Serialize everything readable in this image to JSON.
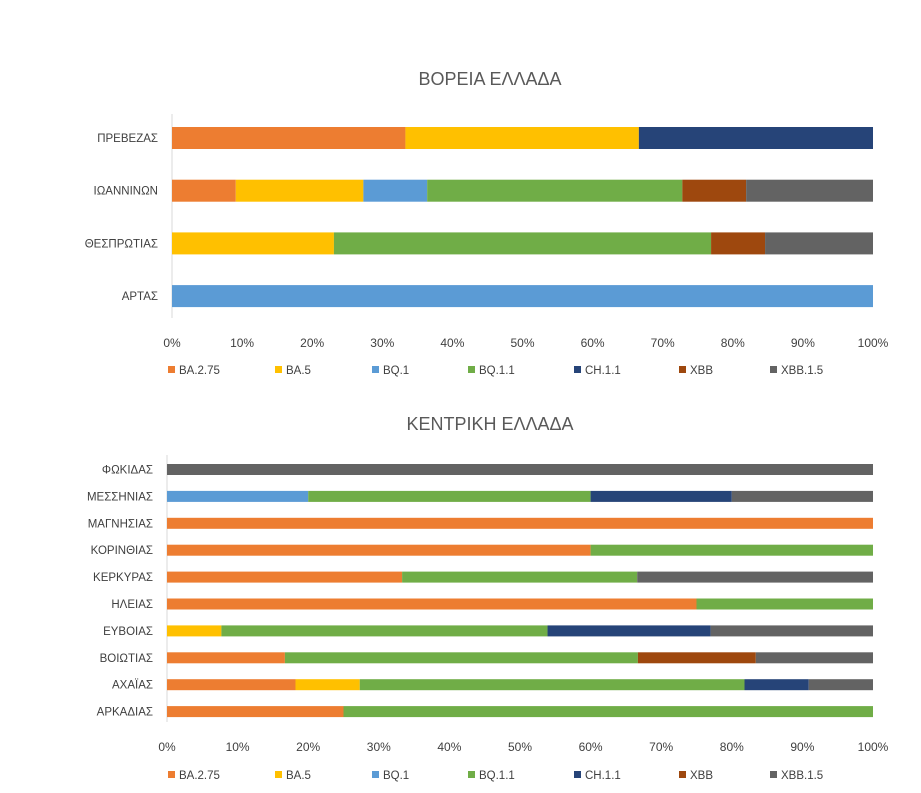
{
  "series_names": [
    "BA.2.75",
    "BA.5",
    "BQ.1",
    "BQ.1.1",
    "CH.1.1",
    "XBB",
    "XBB.1.5"
  ],
  "colors": {
    "BA.2.75": "#ed7d31",
    "BA.5": "#ffc000",
    "BQ.1": "#5b9bd5",
    "BQ.1.1": "#70ad47",
    "CH.1.1": "#264478",
    "XBB": "#9e480e",
    "XBB.1.5": "#636363"
  },
  "chart_data": [
    {
      "type": "bar",
      "orientation": "horizontal",
      "stacked": "percent",
      "title": "ΒΟΡΕΙΑ ΕΛΛΑΔΑ",
      "categories": [
        "ΠΡΕΒΕΖΑΣ",
        "ΙΩΑΝΝΙΝΩΝ",
        "ΘΕΣΠΡΩΤΙΑΣ",
        "ΑΡΤΑΣ"
      ],
      "x_ticks": [
        "0%",
        "10%",
        "20%",
        "30%",
        "40%",
        "50%",
        "60%",
        "70%",
        "80%",
        "90%",
        "100%"
      ],
      "xlim": [
        0,
        100
      ],
      "legend_position": "bottom",
      "series": [
        {
          "name": "BA.2.75",
          "values": [
            33.3,
            9.1,
            0,
            0
          ]
        },
        {
          "name": "BA.5",
          "values": [
            33.3,
            18.2,
            23.1,
            0
          ]
        },
        {
          "name": "BQ.1",
          "values": [
            0,
            9.1,
            0,
            100
          ]
        },
        {
          "name": "BQ.1.1",
          "values": [
            0,
            36.4,
            53.8,
            0
          ]
        },
        {
          "name": "CH.1.1",
          "values": [
            33.4,
            0,
            0,
            0
          ]
        },
        {
          "name": "XBB",
          "values": [
            0,
            9.1,
            7.7,
            0
          ]
        },
        {
          "name": "XBB.1.5",
          "values": [
            0,
            18.1,
            15.4,
            0
          ]
        }
      ]
    },
    {
      "type": "bar",
      "orientation": "horizontal",
      "stacked": "percent",
      "title": "ΚΕΝΤΡΙΚΗ ΕΛΛΑΔΑ",
      "categories": [
        "ΦΩΚΙΔΑΣ",
        "ΜΕΣΣΗΝΙΑΣ",
        "ΜΑΓΝΗΣΙΑΣ",
        "ΚΟΡΙΝΘΙΑΣ",
        "ΚΕΡΚΥΡΑΣ",
        "ΗΛΕΙΑΣ",
        "ΕΥΒΟΙΑΣ",
        "ΒΟΙΩΤΙΑΣ",
        "ΑΧΑΪΑΣ",
        "ΑΡΚΑΔΙΑΣ"
      ],
      "x_ticks": [
        "0%",
        "10%",
        "20%",
        "30%",
        "40%",
        "50%",
        "60%",
        "70%",
        "80%",
        "90%",
        "100%"
      ],
      "xlim": [
        0,
        100
      ],
      "legend_position": "bottom",
      "series": [
        {
          "name": "BA.2.75",
          "values": [
            0,
            0,
            100,
            60,
            33.3,
            75,
            0,
            16.7,
            18.2,
            25
          ]
        },
        {
          "name": "BA.5",
          "values": [
            0,
            0,
            0,
            0,
            0,
            0,
            7.7,
            0,
            9.1,
            0
          ]
        },
        {
          "name": "BQ.1",
          "values": [
            0,
            20,
            0,
            0,
            0,
            0,
            0,
            0,
            0,
            0
          ]
        },
        {
          "name": "BQ.1.1",
          "values": [
            0,
            40,
            0,
            40,
            33.3,
            25,
            46.2,
            50,
            54.5,
            75
          ]
        },
        {
          "name": "CH.1.1",
          "values": [
            0,
            20,
            0,
            0,
            0,
            0,
            23.1,
            0,
            9.1,
            0
          ]
        },
        {
          "name": "XBB",
          "values": [
            0,
            0,
            0,
            0,
            0,
            0,
            0,
            16.7,
            0,
            0
          ]
        },
        {
          "name": "XBB.1.5",
          "values": [
            100,
            20,
            0,
            0,
            33.4,
            0,
            23,
            16.6,
            9.1,
            0
          ]
        }
      ]
    }
  ]
}
